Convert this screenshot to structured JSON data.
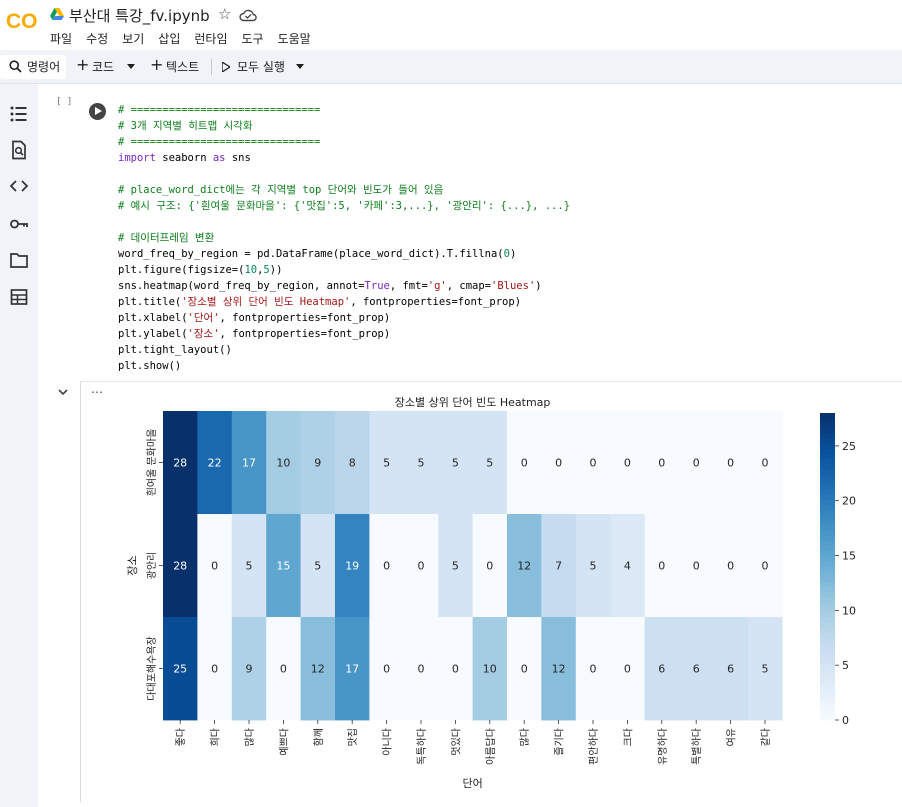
{
  "app": {
    "logo_text": "CO",
    "notebook_title": "부산대 특강_fv.ipynb"
  },
  "menu": [
    "파일",
    "수정",
    "보기",
    "삽입",
    "런타임",
    "도구",
    "도움말"
  ],
  "toolbar": {
    "command_label": "명령어",
    "code_label": "코드",
    "text_label": "텍스트",
    "run_all_label": "모두 실행"
  },
  "cell": {
    "bracket": "[ ]",
    "code_lines": [
      [
        [
          "cm",
          "# =============================="
        ]
      ],
      [
        [
          "cm",
          "# 3개 지역별 히트맵 시각화"
        ]
      ],
      [
        [
          "cm",
          "# =============================="
        ]
      ],
      [
        [
          "kw",
          "import"
        ],
        [
          "tx",
          " seaborn "
        ],
        [
          "kw",
          "as"
        ],
        [
          "tx",
          " sns"
        ]
      ],
      [
        [
          "tx",
          ""
        ]
      ],
      [
        [
          "cm",
          "# place_word_dict에는 각 지역별 top 단어와 빈도가 들어 있음"
        ]
      ],
      [
        [
          "cm",
          "# 예시 구조: {'흰여울 문화마을': {'맛집':5, '카페':3,...}, '광안리': {...}, ...}"
        ]
      ],
      [
        [
          "tx",
          ""
        ]
      ],
      [
        [
          "cm",
          "# 데이터프레임 변환"
        ]
      ],
      [
        [
          "tx",
          "word_freq_by_region = pd.DataFrame(place_word_dict).T.fillna("
        ],
        [
          "nu",
          "0"
        ],
        [
          "tx",
          ")"
        ]
      ],
      [
        [
          "tx",
          "plt.figure(figsize=("
        ],
        [
          "nu",
          "10"
        ],
        [
          "tx",
          ","
        ],
        [
          "nu",
          "5"
        ],
        [
          "tx",
          "))"
        ]
      ],
      [
        [
          "tx",
          "sns.heatmap(word_freq_by_region, annot="
        ],
        [
          "kw",
          "True"
        ],
        [
          "tx",
          ", fmt="
        ],
        [
          "st",
          "'g'"
        ],
        [
          "tx",
          ", cmap="
        ],
        [
          "st",
          "'Blues'"
        ],
        [
          "tx",
          ")"
        ]
      ],
      [
        [
          "tx",
          "plt.title("
        ],
        [
          "st",
          "'장소별 상위 단어 빈도 Heatmap'"
        ],
        [
          "tx",
          ", fontproperties=font_prop)"
        ]
      ],
      [
        [
          "tx",
          "plt.xlabel("
        ],
        [
          "st",
          "'단어'"
        ],
        [
          "tx",
          ", fontproperties=font_prop)"
        ]
      ],
      [
        [
          "tx",
          "plt.ylabel("
        ],
        [
          "st",
          "'장소'"
        ],
        [
          "tx",
          ", fontproperties=font_prop)"
        ]
      ],
      [
        [
          "tx",
          "plt.tight_layout()"
        ]
      ],
      [
        [
          "tx",
          "plt.show()"
        ]
      ]
    ]
  },
  "output": {
    "more_label": "⋯"
  },
  "colors": {
    "accent": "#f9ab00",
    "logo_orange": "#f9ab00",
    "toolbar_bg": "#f0f4f9",
    "comment": "#0f7d1c",
    "keyword": "#7e26c1",
    "string": "#a31515",
    "number": "#098658"
  },
  "icons": {
    "sidebar": [
      "toc-icon",
      "find-icon",
      "code-snippets-icon",
      "secrets-key-icon",
      "folder-icon",
      "table-icon"
    ]
  },
  "chart_data": {
    "type": "heatmap",
    "title": "장소별 상위 단어 빈도 Heatmap",
    "xlabel": "단어",
    "ylabel": "장소",
    "x": [
      "좋다",
      "희다",
      "많다",
      "예쁘다",
      "함께",
      "맛집",
      "아니다",
      "독특하다",
      "멋있다",
      "아름답다",
      "많다",
      "즐기다",
      "편안하다",
      "크다",
      "유명하다",
      "특별하다",
      "여유",
      "같다"
    ],
    "y": [
      "흰여울 문화마을",
      "광안리",
      "다대포해수욕장"
    ],
    "values": [
      [
        28,
        22,
        17,
        10,
        9,
        8,
        5,
        5,
        5,
        5,
        0,
        0,
        0,
        0,
        0,
        0,
        0,
        0
      ],
      [
        28,
        0,
        5,
        15,
        5,
        19,
        0,
        0,
        5,
        0,
        12,
        7,
        5,
        4,
        0,
        0,
        0,
        0
      ],
      [
        25,
        0,
        9,
        0,
        12,
        17,
        0,
        0,
        0,
        10,
        0,
        12,
        0,
        0,
        6,
        6,
        6,
        5
      ]
    ],
    "colormap": "Blues",
    "colorbar_ticks": [
      0,
      5,
      10,
      15,
      20,
      25
    ],
    "vmin": 0,
    "vmax": 28
  }
}
